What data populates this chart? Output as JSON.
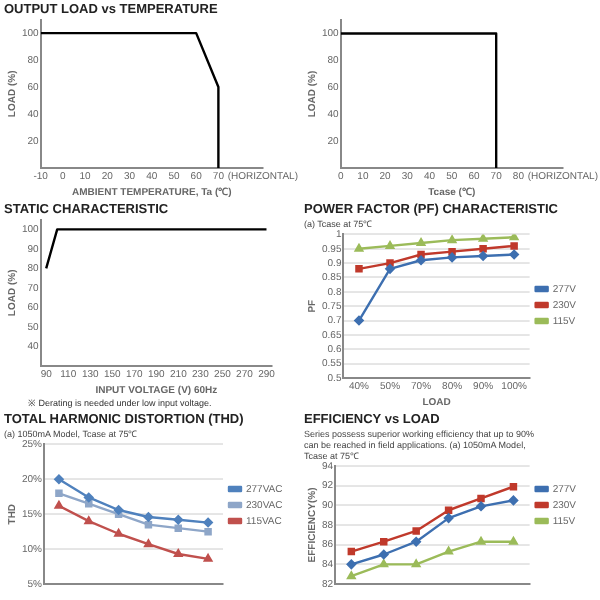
{
  "chart_data": [
    {
      "type": "line",
      "title": "OUTPUT LOAD vs TEMPERATURE",
      "xlabel": "AMBIENT TEMPERATURE, Ta (℃)",
      "ylabel": "LOAD (%)",
      "x": [
        -10,
        60,
        70,
        70
      ],
      "values": [
        100,
        100,
        60,
        0
      ],
      "color": "#000000",
      "xlim": [
        -10,
        90
      ],
      "xticks": [
        -10,
        0,
        10,
        20,
        30,
        40,
        50,
        60,
        70,
        {
          "value": 90,
          "label": "(HORIZONTAL)"
        }
      ],
      "ylim": [
        0,
        110
      ],
      "yticks": [
        20,
        40,
        60,
        80,
        100
      ],
      "grid": false
    },
    {
      "type": "line",
      "xlabel": "Tcase (℃)",
      "ylabel": "LOAD (%)",
      "x": [
        0,
        70,
        70
      ],
      "values": [
        100,
        100,
        0
      ],
      "color": "#000000",
      "xlim": [
        0,
        100
      ],
      "xticks": [
        0,
        10,
        20,
        30,
        40,
        50,
        60,
        70,
        80,
        {
          "value": 100,
          "label": "(HORIZONTAL)"
        }
      ],
      "ylim": [
        0,
        110
      ],
      "yticks": [
        20,
        40,
        60,
        80,
        100
      ],
      "grid": false
    },
    {
      "type": "line",
      "title": "STATIC CHARACTERISTIC",
      "xlabel": "INPUT VOLTAGE (V) 60Hz",
      "ylabel": "LOAD (%)",
      "x": [
        90,
        100,
        290
      ],
      "values": [
        80,
        100,
        100
      ],
      "color": "#000000",
      "xlim": [
        85,
        295
      ],
      "xticks": [
        90,
        110,
        130,
        150,
        170,
        190,
        210,
        230,
        250,
        270,
        290
      ],
      "ylim": [
        30,
        105
      ],
      "yticks": [
        40,
        50,
        60,
        70,
        80,
        90,
        100
      ],
      "grid": false,
      "annotations": [
        "※ Derating is needed under low input voltage."
      ]
    },
    {
      "type": "line",
      "title": "POWER FACTOR (PF) CHARACTERISTIC",
      "subtitle": "(a) Tcase at 75℃",
      "xlabel": "LOAD",
      "ylabel": "PF",
      "categories": [
        "40%",
        "50%",
        "70%",
        "80%",
        "90%",
        "100%"
      ],
      "series": [
        {
          "name": "277V",
          "color": "#3d6fb0",
          "marker": "diamond",
          "values": [
            0.7,
            0.88,
            0.91,
            0.92,
            0.925,
            0.93
          ]
        },
        {
          "name": "230V",
          "color": "#c0392b",
          "marker": "square",
          "values": [
            0.88,
            0.9,
            0.93,
            0.94,
            0.95,
            0.96
          ]
        },
        {
          "name": "115V",
          "color": "#9bbb59",
          "marker": "triangle",
          "values": [
            0.95,
            0.96,
            0.97,
            0.98,
            0.985,
            0.99
          ]
        }
      ],
      "ylim": [
        0.5,
        1
      ],
      "yticks": [
        0.5,
        0.55,
        0.6,
        0.65,
        0.7,
        0.75,
        0.8,
        0.85,
        0.9,
        0.95,
        1
      ],
      "grid": "y",
      "legend": "right"
    },
    {
      "type": "line",
      "title": "TOTAL HARMONIC DISTORTION (THD)",
      "subtitle": "(a) 1050mA Model, Tcase at 75℃",
      "ylabel": "THD",
      "categories": [
        null,
        null,
        null,
        null,
        null,
        null
      ],
      "series": [
        {
          "name": "277VAC",
          "color": "#4f81bd",
          "marker": "diamond",
          "values": [
            20,
            17.4,
            15.6,
            14.6,
            14.2,
            13.8
          ]
        },
        {
          "name": "230VAC",
          "color": "#8ea6c8",
          "marker": "square",
          "values": [
            18,
            16.5,
            15,
            13.5,
            13,
            12.5
          ]
        },
        {
          "name": "115VAC",
          "color": "#c0504d",
          "marker": "triangle",
          "values": [
            16.2,
            14,
            12.2,
            10.7,
            9.3,
            8.6
          ]
        }
      ],
      "ylim": [
        5,
        25
      ],
      "yticks": [
        {
          "value": 5,
          "label": "5%"
        },
        {
          "value": 10,
          "label": "10%"
        },
        {
          "value": 15,
          "label": "15%"
        },
        {
          "value": 20,
          "label": "20%"
        },
        {
          "value": 25,
          "label": "25%"
        }
      ],
      "grid": "y",
      "legend": "right"
    },
    {
      "type": "line",
      "title": "EFFICIENCY vs LOAD",
      "subtitle": "Series possess superior working efficiency that up to 90% can be reached in field applications. (a) 1050mA Model, Tcase at 75℃",
      "ylabel": "EFFICIENCY(%)",
      "categories": [
        null,
        null,
        null,
        null,
        null,
        null
      ],
      "series": [
        {
          "name": "277V",
          "color": "#3d6fb0",
          "marker": "diamond",
          "values": [
            84,
            85,
            86.3,
            88.7,
            89.9,
            90.5
          ]
        },
        {
          "name": "230V",
          "color": "#c0392b",
          "marker": "square",
          "values": [
            85.3,
            86.3,
            87.4,
            89.5,
            90.7,
            91.9
          ]
        },
        {
          "name": "115V",
          "color": "#9bbb59",
          "marker": "triangle",
          "values": [
            82.8,
            84,
            84,
            85.3,
            86.3,
            86.3
          ]
        }
      ],
      "ylim": [
        82,
        94
      ],
      "yticks": [
        82,
        84,
        86,
        88,
        90,
        92,
        94
      ],
      "grid": "y",
      "legend": "right"
    }
  ]
}
